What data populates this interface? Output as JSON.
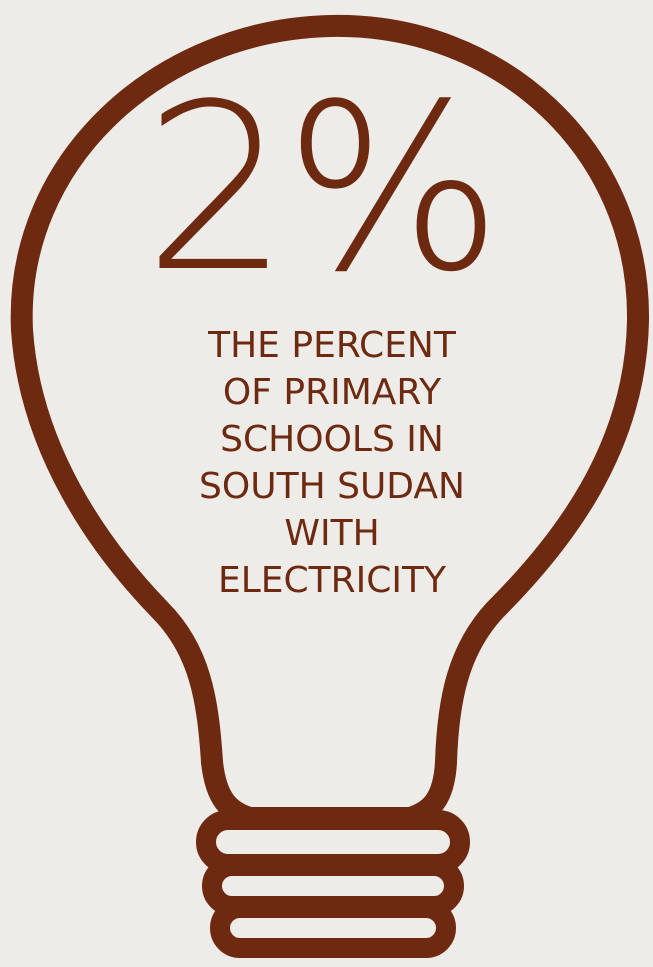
{
  "colors": {
    "background": "#eeece9",
    "accent": "#6e2a10"
  },
  "icon": "lightbulb-outline-icon",
  "stat": {
    "value": "2%"
  },
  "caption": {
    "lines": [
      "THE PERCENT",
      "OF PRIMARY",
      "SCHOOLS IN",
      "SOUTH SUDAN",
      "WITH",
      "ELECTRICITY"
    ]
  }
}
